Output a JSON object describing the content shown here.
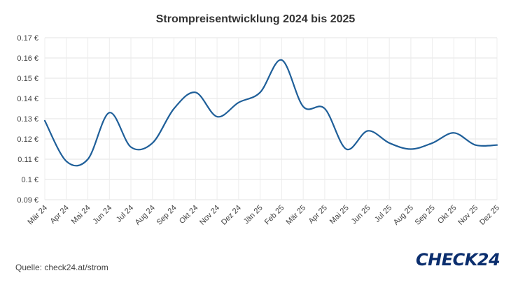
{
  "chart_data": {
    "type": "line",
    "title": "Strompreisentwicklung 2024 bis 2025",
    "xlabel": "",
    "ylabel": "",
    "categories": [
      "Mär 24",
      "Apr 24",
      "Mai 24",
      "Jun 24",
      "Jul 24",
      "Aug 24",
      "Sep 24",
      "Okt 24",
      "Nov 24",
      "Dez 24",
      "Jän 25",
      "Feb 25",
      "Mär 25",
      "Apr 25",
      "Mai 25",
      "Jun 25",
      "Jul 25",
      "Aug 25",
      "Sep 25",
      "Okt 25",
      "Nov 25",
      "Dez 25"
    ],
    "series": [
      {
        "values": [
          0.129,
          0.109,
          0.11,
          0.133,
          0.116,
          0.118,
          0.135,
          0.143,
          0.131,
          0.138,
          0.143,
          0.159,
          0.136,
          0.135,
          0.115,
          0.124,
          0.118,
          0.115,
          0.118,
          0.123,
          0.117,
          0.117
        ]
      }
    ],
    "ylim": [
      0.09,
      0.17
    ],
    "yticks": [
      0.09,
      0.1,
      0.11,
      0.12,
      0.13,
      0.14,
      0.15,
      0.16,
      0.17
    ],
    "ytick_labels": [
      "0.09 €",
      "0.1 €",
      "0.11 €",
      "0.12 €",
      "0.13 €",
      "0.14 €",
      "0.15 €",
      "0.16 €",
      "0.17 €"
    ],
    "grid": true,
    "line_color": "#1f5f99"
  },
  "footer": {
    "source": "Quelle: check24.at/strom",
    "logo": "CHECK24"
  }
}
